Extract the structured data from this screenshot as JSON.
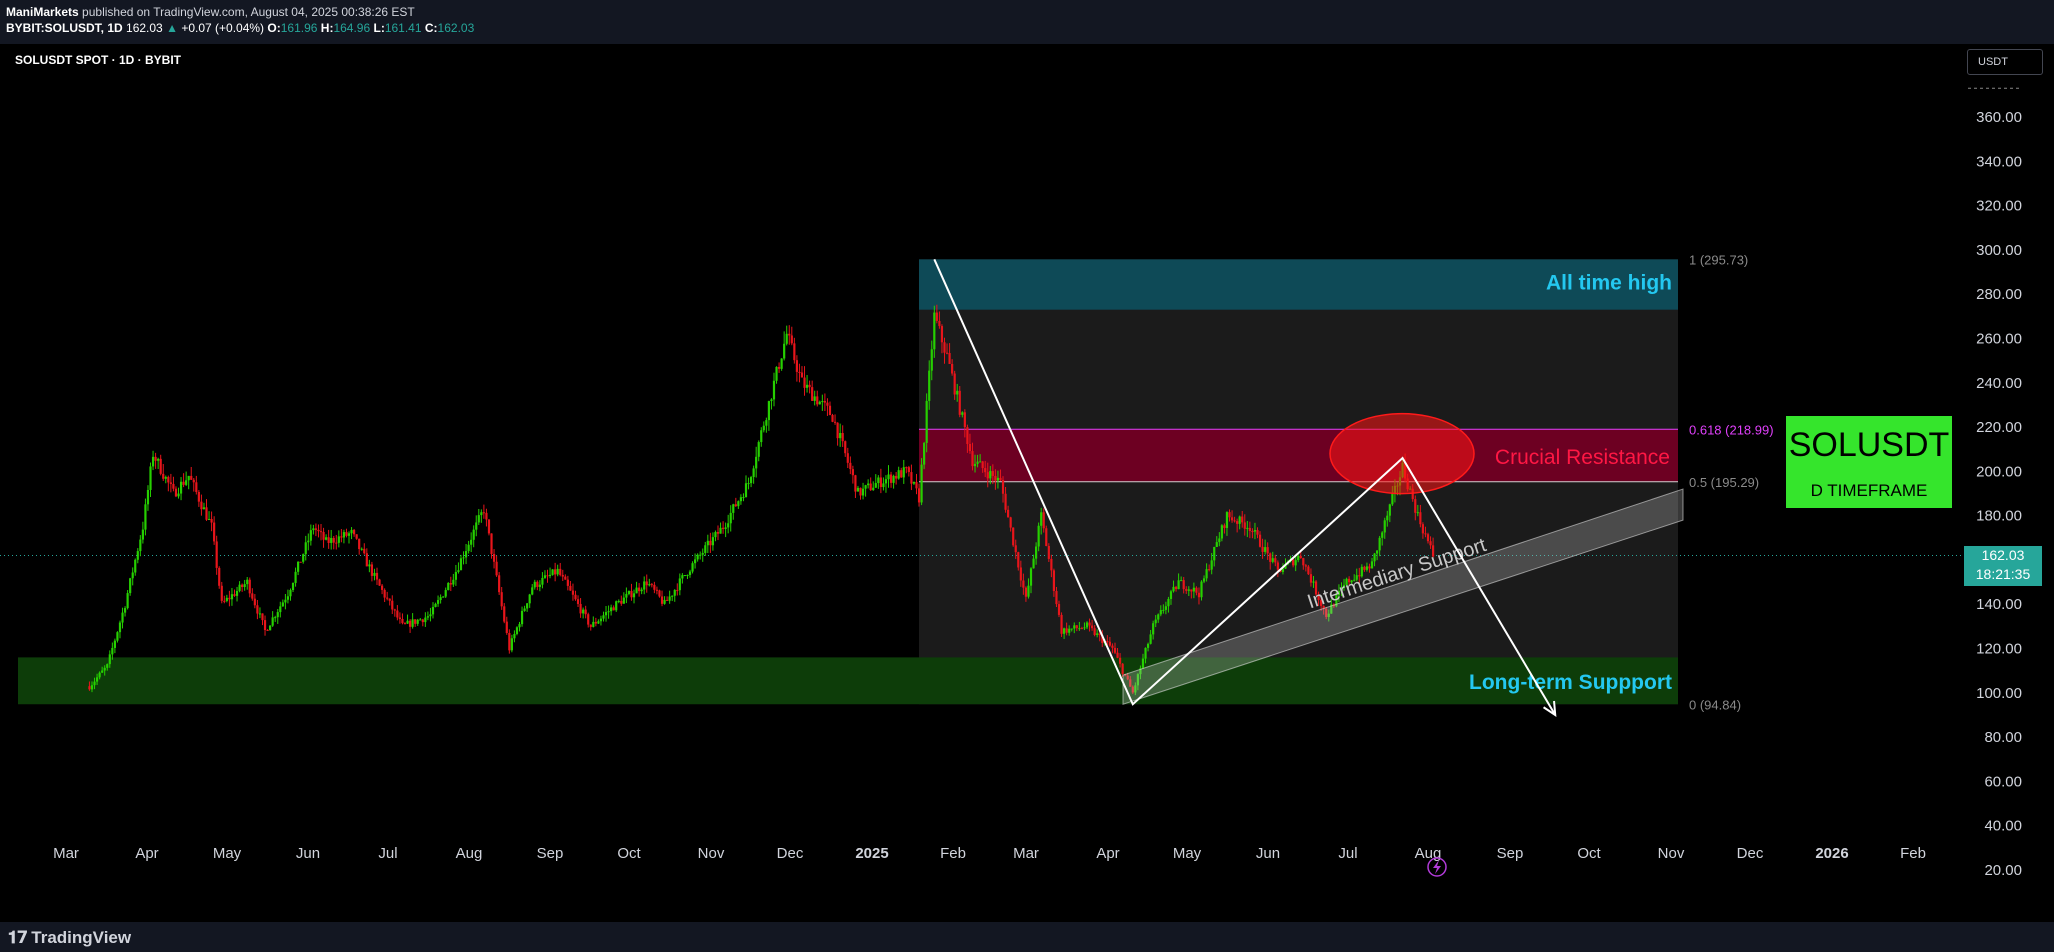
{
  "header": {
    "publisher": "ManiMarkets",
    "published_text": "published on TradingView.com, August 04, 2025 00:38:26 EST",
    "symbol_line": "BYBIT:SOLUSDT, 1D",
    "last": "162.03",
    "change": "+0.07 (+0.04%)",
    "o_label": "O:",
    "o": "161.96",
    "h_label": "H:",
    "h": "164.96",
    "l_label": "L:",
    "l": "161.41",
    "c_label": "C:",
    "c": "162.03"
  },
  "chart_header": "SOLUSDT SPOT · 1D · BYBIT",
  "currency_button": "USDT",
  "last_price_label": {
    "price": "162.03",
    "countdown": "18:21:35"
  },
  "badge": {
    "line1": "SOLUSDT",
    "line2": "D TIMEFRAME"
  },
  "footer": {
    "logo_text": "TradingView"
  },
  "chart_data": {
    "type": "candlestick",
    "symbol": "SOLUSDT",
    "timeframe": "1D",
    "y_axis": {
      "min": 20,
      "max": 360,
      "ticks": [
        "360.00",
        "340.00",
        "320.00",
        "300.00",
        "280.00",
        "260.00",
        "240.00",
        "220.00",
        "200.00",
        "180.00",
        "160.00",
        "140.00",
        "120.00",
        "100.00",
        "80.00",
        "60.00",
        "40.00",
        "20.00"
      ]
    },
    "x_axis": {
      "labels": [
        "Mar",
        "Apr",
        "May",
        "Jun",
        "Jul",
        "Aug",
        "Sep",
        "Oct",
        "Nov",
        "Dec",
        "2025",
        "Feb",
        "Mar",
        "Apr",
        "May",
        "Jun",
        "Jul",
        "Aug",
        "Sep",
        "Oct",
        "Nov",
        "Dec",
        "2026",
        "Feb"
      ],
      "bold_labels": [
        "2025",
        "2026"
      ]
    },
    "price_path": [
      [
        "2024-02-22",
        103
      ],
      [
        "2024-02-29",
        112
      ],
      [
        "2024-03-07",
        140
      ],
      [
        "2024-03-14",
        175
      ],
      [
        "2024-03-18",
        208
      ],
      [
        "2024-03-26",
        190
      ],
      [
        "2024-04-01",
        198
      ],
      [
        "2024-04-10",
        175
      ],
      [
        "2024-04-14",
        140
      ],
      [
        "2024-04-24",
        150
      ],
      [
        "2024-05-01",
        128
      ],
      [
        "2024-05-10",
        145
      ],
      [
        "2024-05-20",
        175
      ],
      [
        "2024-05-25",
        168
      ],
      [
        "2024-06-04",
        172
      ],
      [
        "2024-06-14",
        150
      ],
      [
        "2024-06-24",
        130
      ],
      [
        "2024-07-05",
        135
      ],
      [
        "2024-07-15",
        155
      ],
      [
        "2024-07-26",
        183
      ],
      [
        "2024-08-05",
        120
      ],
      [
        "2024-08-14",
        148
      ],
      [
        "2024-08-24",
        155
      ],
      [
        "2024-09-06",
        130
      ],
      [
        "2024-09-16",
        140
      ],
      [
        "2024-09-28",
        150
      ],
      [
        "2024-10-05",
        140
      ],
      [
        "2024-10-14",
        155
      ],
      [
        "2024-10-28",
        175
      ],
      [
        "2024-11-07",
        195
      ],
      [
        "2024-11-22",
        262
      ],
      [
        "2024-11-28",
        240
      ],
      [
        "2024-12-10",
        225
      ],
      [
        "2024-12-20",
        190
      ],
      [
        "2024-12-28",
        195
      ],
      [
        "2025-01-08",
        200
      ],
      [
        "2025-01-13",
        188
      ],
      [
        "2025-01-19",
        270
      ],
      [
        "2025-01-24",
        252
      ],
      [
        "2025-02-03",
        205
      ],
      [
        "2025-02-14",
        195
      ],
      [
        "2025-02-24",
        142
      ],
      [
        "2025-03-02",
        180
      ],
      [
        "2025-03-10",
        128
      ],
      [
        "2025-03-20",
        130
      ],
      [
        "2025-03-30",
        120
      ],
      [
        "2025-04-07",
        100
      ],
      [
        "2025-04-15",
        130
      ],
      [
        "2025-04-25",
        150
      ],
      [
        "2025-05-03",
        145
      ],
      [
        "2025-05-14",
        180
      ],
      [
        "2025-05-23",
        175
      ],
      [
        "2025-06-03",
        155
      ],
      [
        "2025-06-12",
        162
      ],
      [
        "2025-06-22",
        135
      ],
      [
        "2025-06-30",
        150
      ],
      [
        "2025-07-10",
        158
      ],
      [
        "2025-07-22",
        202
      ],
      [
        "2025-07-28",
        180
      ],
      [
        "2025-08-03",
        162
      ]
    ],
    "last_price": 162.03,
    "zones": [
      {
        "label": "All time high",
        "from": 273,
        "to": 295.73,
        "color": "#0e4a57",
        "text_color": "#24c8f0"
      },
      {
        "label": "Crucial Resistance",
        "from": 195.29,
        "to": 218.99,
        "color": "#6d0022",
        "text_color": "#ff1744"
      },
      {
        "label": "Long-term Suppport",
        "from": 94.84,
        "to": 116,
        "color": "#0d3d09",
        "text_color": "#24c8f0"
      }
    ],
    "fib_levels": [
      {
        "label": "1 (295.73)",
        "value": 295.73
      },
      {
        "label": "0.618 (218.99)",
        "value": 218.99,
        "color": "#e040fb"
      },
      {
        "label": "0.5 (195.29)",
        "value": 195.29
      },
      {
        "label": "0 (94.84)",
        "value": 94.84
      }
    ],
    "annotations": [
      {
        "label": "Intermediary Support",
        "type": "channel"
      },
      {
        "type": "ellipse",
        "color": "#ff1a1a"
      },
      {
        "type": "path",
        "points": [
          [
            "2025-01-19",
            295.73
          ],
          [
            "2025-04-07",
            94.84
          ],
          [
            "2025-07-22",
            206
          ],
          [
            "2025-09-20",
            90
          ]
        ]
      }
    ],
    "colors": {
      "up": "#26d000",
      "down": "#e8151b",
      "background": "#000000"
    }
  }
}
